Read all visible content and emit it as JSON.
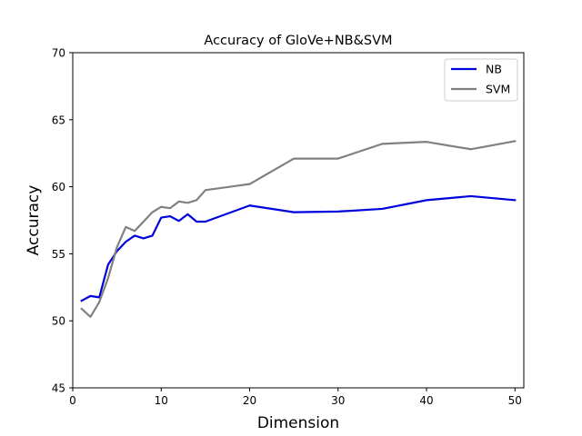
{
  "chart_data": {
    "type": "line",
    "title": "Accuracy of GloVe+NB&SVM",
    "xlabel": "Dimension",
    "ylabel": "Accuracy",
    "xlim": [
      0,
      51
    ],
    "ylim": [
      45,
      70
    ],
    "xticks": [
      0,
      10,
      20,
      30,
      40,
      50
    ],
    "yticks": [
      45,
      50,
      55,
      60,
      65,
      70
    ],
    "grid": false,
    "legend_position": "top-right",
    "series": [
      {
        "name": "NB",
        "color": "#0000dd",
        "x": [
          1,
          2,
          3,
          4,
          5,
          6,
          7,
          8,
          9,
          10,
          11,
          12,
          13,
          14,
          15,
          20,
          25,
          30,
          35,
          40,
          45,
          50
        ],
        "y": [
          51.5,
          51.85,
          51.75,
          54.2,
          55.2,
          55.9,
          56.35,
          56.15,
          56.35,
          57.7,
          57.8,
          57.45,
          57.95,
          57.4,
          57.4,
          58.6,
          58.1,
          58.15,
          58.35,
          59.0,
          59.3,
          59.0
        ]
      },
      {
        "name": "SVM",
        "color": "#808080",
        "x": [
          1,
          2,
          3,
          4,
          5,
          6,
          7,
          8,
          9,
          10,
          11,
          12,
          13,
          14,
          15,
          20,
          25,
          30,
          35,
          40,
          45,
          50
        ],
        "y": [
          50.9,
          50.3,
          51.4,
          53.2,
          55.5,
          57.0,
          56.7,
          57.4,
          58.1,
          58.5,
          58.4,
          58.9,
          58.8,
          59.0,
          59.75,
          60.2,
          62.1,
          62.1,
          63.2,
          63.35,
          62.8,
          63.4
        ]
      }
    ]
  }
}
